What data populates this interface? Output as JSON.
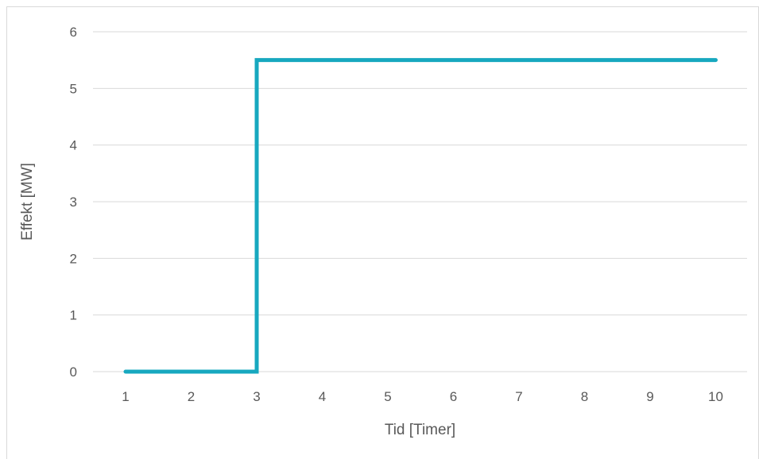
{
  "chart_data": {
    "type": "line",
    "title": "",
    "xlabel": "Tid [Timer]",
    "ylabel": "Effekt [MW]",
    "categories": [
      "1",
      "2",
      "3",
      "4",
      "5",
      "6",
      "7",
      "8",
      "9",
      "10"
    ],
    "x_ticks": [
      1,
      2,
      3,
      4,
      5,
      6,
      7,
      8,
      9,
      10
    ],
    "y_ticks": [
      0,
      1,
      2,
      3,
      4,
      5,
      6
    ],
    "ylim": [
      0,
      6
    ],
    "xlim": [
      1,
      10
    ],
    "grid": true,
    "legend": "none",
    "series": [
      {
        "x": [
          1,
          3,
          3,
          10
        ],
        "y": [
          0,
          0,
          5.5,
          5.5
        ],
        "color": "#17a8bf"
      }
    ],
    "colors": {
      "line": "#17a8bf",
      "grid": "#d9d9d9",
      "text": "#595959"
    }
  }
}
